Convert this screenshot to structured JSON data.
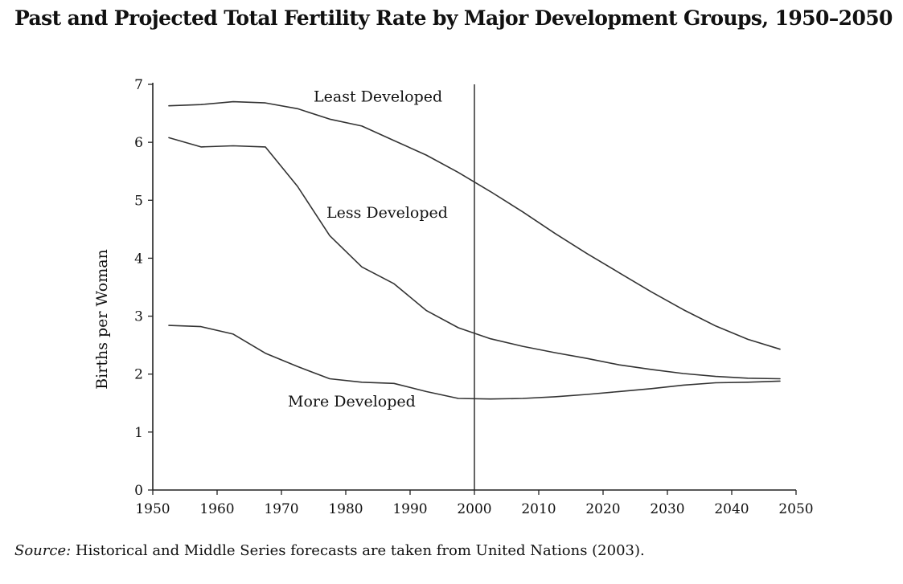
{
  "chart_data": {
    "type": "line",
    "title": "Past and Projected Total Fertility Rate by Major Development Groups, 1950–2050",
    "xlabel": "",
    "ylabel": "Births per Woman",
    "xlim": [
      1950,
      2050
    ],
    "ylim": [
      0,
      7
    ],
    "x_ticks": [
      1950,
      1960,
      1970,
      1980,
      1990,
      2000,
      2010,
      2020,
      2030,
      2040,
      2050
    ],
    "y_ticks": [
      0,
      1,
      2,
      3,
      4,
      5,
      6,
      7
    ],
    "grid": false,
    "legend": "none",
    "reference_line_x": 2000,
    "x": [
      1952.5,
      1957.5,
      1962.5,
      1967.5,
      1972.5,
      1977.5,
      1982.5,
      1987.5,
      1992.5,
      1997.5,
      2002.5,
      2007.5,
      2012.5,
      2017.5,
      2022.5,
      2027.5,
      2032.5,
      2037.5,
      2042.5,
      2047.5
    ],
    "series": [
      {
        "name": "Least Developed",
        "label_position": [
          1975,
          6.7
        ],
        "values": [
          6.63,
          6.65,
          6.7,
          6.68,
          6.58,
          6.4,
          6.28,
          6.03,
          5.78,
          5.48,
          5.15,
          4.8,
          4.43,
          4.08,
          3.75,
          3.42,
          3.11,
          2.83,
          2.6,
          2.43
        ]
      },
      {
        "name": "Less Developed",
        "label_position": [
          1977,
          4.7
        ],
        "values": [
          6.08,
          5.92,
          5.94,
          5.92,
          5.24,
          4.39,
          3.85,
          3.56,
          3.1,
          2.8,
          2.61,
          2.48,
          2.37,
          2.27,
          2.16,
          2.08,
          2.01,
          1.96,
          1.93,
          1.92
        ]
      },
      {
        "name": "More Developed",
        "label_position": [
          1971,
          1.44
        ],
        "values": [
          2.84,
          2.82,
          2.69,
          2.36,
          2.13,
          1.92,
          1.86,
          1.84,
          1.7,
          1.58,
          1.57,
          1.58,
          1.61,
          1.65,
          1.7,
          1.75,
          1.81,
          1.85,
          1.86,
          1.88
        ]
      }
    ]
  },
  "source": {
    "label": "Source:",
    "text": "Historical and Middle Series forecasts are taken from United Nations (2003)."
  }
}
